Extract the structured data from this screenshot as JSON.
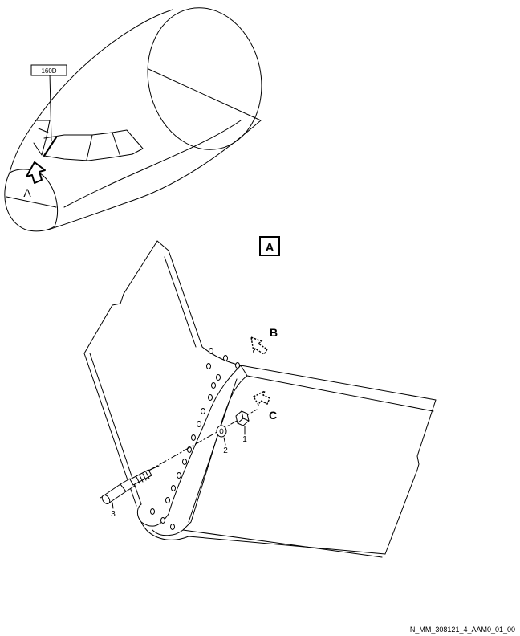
{
  "zone_label": "160D",
  "view_arrow_label": "A",
  "detail_box_label": "A",
  "callouts": {
    "b": "B",
    "c": "C"
  },
  "item_numbers": {
    "nut": "1",
    "washer": "2",
    "bolt": "3"
  },
  "figure_id": "N_MM_308121_4_AAM0_01_00"
}
